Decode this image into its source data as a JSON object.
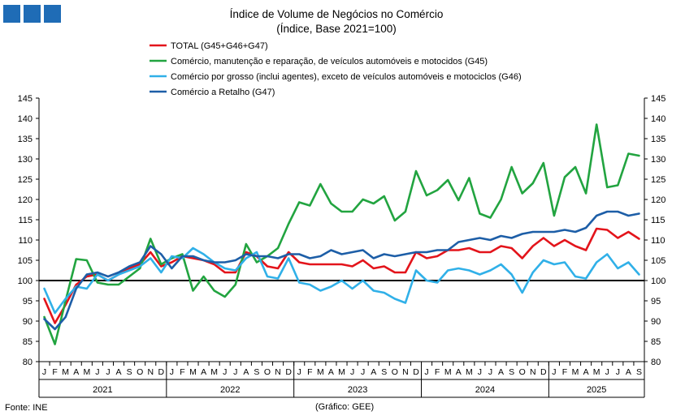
{
  "logo_colors": [
    "#1f6cb6",
    "#1f6cb6",
    "#1f6cb6"
  ],
  "source": "Fonte: INE",
  "graph_credit": "(Gráfico: GEE)",
  "chart_data": {
    "type": "line",
    "title": "Índice de Volume de Negócios no Comércio",
    "subtitle": "(Índice, Base 2021=100)",
    "ylim": [
      80,
      145
    ],
    "yticks": [
      80,
      85,
      90,
      95,
      100,
      105,
      110,
      115,
      120,
      125,
      130,
      135,
      140,
      145
    ],
    "reference_line": 100,
    "grid": false,
    "legend_position": "top-left",
    "month_labels": [
      "J",
      "F",
      "M",
      "A",
      "M",
      "J",
      "J",
      "A",
      "S",
      "O",
      "N",
      "D",
      "J",
      "F",
      "M",
      "A",
      "M",
      "J",
      "J",
      "A",
      "S",
      "O",
      "N",
      "D",
      "J",
      "F",
      "M",
      "A",
      "M",
      "J",
      "J",
      "A",
      "S",
      "O",
      "N",
      "D",
      "J",
      "F",
      "M",
      "A",
      "M",
      "J",
      "J",
      "A",
      "S",
      "O",
      "N",
      "D",
      "J",
      "F",
      "M",
      "A",
      "M",
      "J",
      "J",
      "A",
      "S"
    ],
    "years": [
      {
        "label": "2021",
        "months": 12
      },
      {
        "label": "2022",
        "months": 12
      },
      {
        "label": "2023",
        "months": 12
      },
      {
        "label": "2024",
        "months": 12
      },
      {
        "label": "2025",
        "months": 9
      }
    ],
    "series": [
      {
        "name": "TOTAL (G45+G46+G47)",
        "color": "#e3141b",
        "values": [
          95.5,
          89.5,
          94.0,
          99.0,
          101.0,
          101.5,
          100.0,
          101.5,
          103.0,
          104.0,
          107.0,
          103.5,
          104.5,
          106.0,
          105.5,
          105.0,
          104.0,
          102.0,
          102.0,
          107.0,
          106.0,
          103.5,
          103.0,
          107.0,
          104.5,
          104.0,
          104.0,
          104.0,
          104.0,
          103.5,
          105.0,
          103.0,
          103.5,
          102.0,
          102.0,
          107.0,
          105.5,
          106.0,
          107.5,
          107.5,
          108.0,
          107.0,
          107.0,
          108.5,
          108.0,
          105.5,
          108.5,
          110.5,
          108.5,
          110.0,
          108.5,
          107.5,
          112.8,
          112.5,
          110.5,
          112.0,
          110.3
        ]
      },
      {
        "name": "Comércio, manutenção e reparação, de veículos automóveis e motocidos (G45)",
        "color": "#22a440",
        "values": [
          91.0,
          84.3,
          95.0,
          105.3,
          105.0,
          99.5,
          99.0,
          99.0,
          101.0,
          103.0,
          110.3,
          104.0,
          105.5,
          106.5,
          97.5,
          101.0,
          97.5,
          96.0,
          99.0,
          109.0,
          104.5,
          106.0,
          108.0,
          114.0,
          119.3,
          118.5,
          123.8,
          119.0,
          117.0,
          117.0,
          120.0,
          119.0,
          120.8,
          114.8,
          117.0,
          127.0,
          121.0,
          122.3,
          124.8,
          119.8,
          125.3,
          116.5,
          115.5,
          120.0,
          128.0,
          121.5,
          124.0,
          129.0,
          116.0,
          125.5,
          128.0,
          121.5,
          138.5,
          123.0,
          123.5,
          131.3,
          130.8
        ]
      },
      {
        "name": "Comércio por grosso (inclui agentes), exceto de veículos automóveis e motociclos (G46)",
        "color": "#30b0e8",
        "values": [
          98.0,
          92.0,
          95.5,
          98.5,
          98.0,
          101.5,
          100.0,
          101.5,
          102.5,
          103.5,
          105.5,
          102.0,
          106.0,
          105.5,
          108.0,
          106.5,
          104.5,
          103.0,
          102.5,
          105.5,
          107.0,
          101.0,
          100.5,
          105.5,
          99.5,
          99.0,
          97.5,
          98.5,
          100.0,
          98.0,
          100.0,
          97.5,
          97.0,
          95.5,
          94.5,
          102.5,
          100.0,
          99.5,
          102.5,
          103.0,
          102.5,
          101.5,
          102.5,
          104.0,
          101.5,
          97.0,
          102.0,
          105.0,
          104.0,
          104.5,
          101.0,
          100.5,
          104.5,
          106.5,
          103.0,
          104.5,
          101.5
        ]
      },
      {
        "name": "Comércio a Retalho (G47)",
        "color": "#1d5ea7",
        "values": [
          90.5,
          88.0,
          91.0,
          98.0,
          101.5,
          102.0,
          101.0,
          102.0,
          103.5,
          104.5,
          108.5,
          106.5,
          103.0,
          106.0,
          106.0,
          105.0,
          104.5,
          104.5,
          105.0,
          106.5,
          106.0,
          106.0,
          105.5,
          106.5,
          106.5,
          105.5,
          106.0,
          107.5,
          106.5,
          107.0,
          107.5,
          105.5,
          106.5,
          106.0,
          106.5,
          107.0,
          107.0,
          107.5,
          107.5,
          109.5,
          110.0,
          110.5,
          110.0,
          111.0,
          110.5,
          111.5,
          112.0,
          112.0,
          112.0,
          112.5,
          112.0,
          113.0,
          116.0,
          117.0,
          117.0,
          116.0,
          116.5
        ]
      }
    ]
  }
}
